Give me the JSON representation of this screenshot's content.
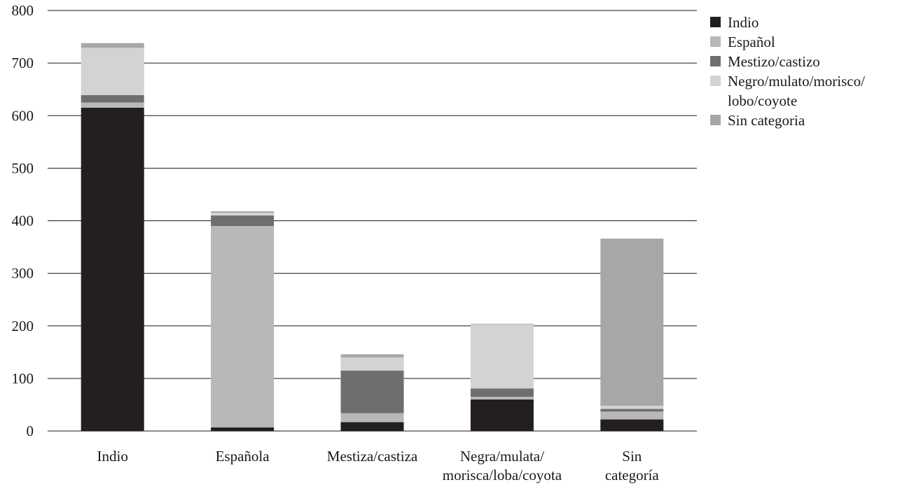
{
  "chart_data": {
    "type": "bar",
    "stacked": true,
    "categories": [
      "Indio",
      "Española",
      "Mestiza/castiza",
      "Negra/mulata/ morisca/loba/coyota",
      "Sin categoría"
    ],
    "series": [
      {
        "name": "Indio",
        "color": "#231f20",
        "values": [
          615,
          7,
          17,
          60,
          22
        ]
      },
      {
        "name": "Español",
        "color": "#b7b8ba",
        "values": [
          10,
          383,
          17,
          5,
          15
        ]
      },
      {
        "name": "Mestizo/castizo",
        "color": "#6d6e70",
        "values": [
          14,
          20,
          81,
          16,
          5
        ]
      },
      {
        "name": "Negro/mulato/morisco/ lobo/coyote",
        "color": "#d2d3d4",
        "values": [
          90,
          5,
          25,
          122,
          6
        ]
      },
      {
        "name": "Sin categoria",
        "color": "#a6a7a9",
        "values": [
          9,
          3,
          6,
          1,
          318
        ]
      }
    ],
    "ylim": [
      0,
      800
    ],
    "yticks": [
      0,
      100,
      200,
      300,
      400,
      500,
      600,
      700,
      800
    ],
    "grid": true,
    "legend_position": "top-right"
  }
}
